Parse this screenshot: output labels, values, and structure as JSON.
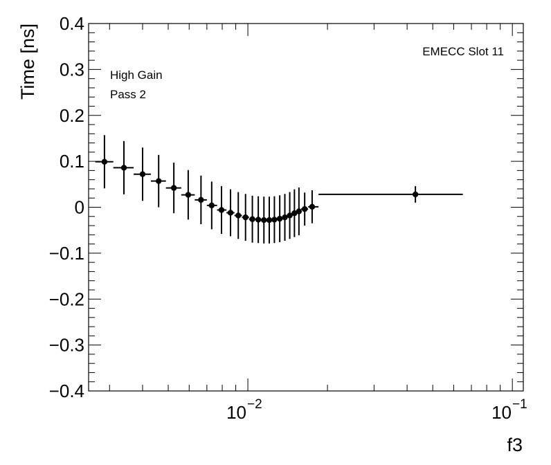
{
  "chart_data": {
    "type": "scatter",
    "xscale": "log",
    "xlim": [
      0.0025,
      0.11
    ],
    "ylim": [
      -0.4,
      0.4
    ],
    "xlabel": "f3",
    "ylabel": "Time [ns]",
    "x_major_ticks": [
      {
        "value": 0.01,
        "base": "10",
        "exp": "−2"
      },
      {
        "value": 0.1,
        "base": "10",
        "exp": "−1"
      }
    ],
    "y_ticks": [
      {
        "value": 0.4,
        "label": "0.4"
      },
      {
        "value": 0.3,
        "label": "0.3"
      },
      {
        "value": 0.2,
        "label": "0.2"
      },
      {
        "value": 0.1,
        "label": "0.1"
      },
      {
        "value": 0.0,
        "label": "0"
      },
      {
        "value": -0.1,
        "label": "−0.1"
      },
      {
        "value": -0.2,
        "label": "−0.2"
      },
      {
        "value": -0.3,
        "label": "−0.3"
      },
      {
        "value": -0.4,
        "label": "−0.4"
      }
    ],
    "annotations": {
      "top_right": "EMECC Slot 11",
      "top_left_line1": "High Gain",
      "top_left_line2": "Pass 2"
    },
    "series": [
      {
        "name": "EMECC Slot 11",
        "marker": "circle",
        "color": "#000000",
        "points": [
          {
            "x": 0.00287,
            "xlo": 0.00265,
            "xhi": 0.0031,
            "y": 0.099,
            "yerr": 0.058
          },
          {
            "x": 0.0034,
            "xlo": 0.0031,
            "xhi": 0.0037,
            "y": 0.086,
            "yerr": 0.058
          },
          {
            "x": 0.004,
            "xlo": 0.0037,
            "xhi": 0.0043,
            "y": 0.072,
            "yerr": 0.058
          },
          {
            "x": 0.0046,
            "xlo": 0.0043,
            "xhi": 0.0049,
            "y": 0.057,
            "yerr": 0.057
          },
          {
            "x": 0.00525,
            "xlo": 0.0049,
            "xhi": 0.0056,
            "y": 0.042,
            "yerr": 0.055
          },
          {
            "x": 0.00595,
            "xlo": 0.0056,
            "xhi": 0.0063,
            "y": 0.027,
            "yerr": 0.054
          },
          {
            "x": 0.00665,
            "xlo": 0.0063,
            "xhi": 0.007,
            "y": 0.016,
            "yerr": 0.053
          },
          {
            "x": 0.0073,
            "xlo": 0.007,
            "xhi": 0.00765,
            "y": 0.004,
            "yerr": 0.052
          },
          {
            "x": 0.00795,
            "xlo": 0.00765,
            "xhi": 0.0083,
            "y": -0.006,
            "yerr": 0.052
          },
          {
            "x": 0.0086,
            "xlo": 0.0083,
            "xhi": 0.0089,
            "y": -0.012,
            "yerr": 0.051
          },
          {
            "x": 0.0092,
            "xlo": 0.0089,
            "xhi": 0.0095,
            "y": -0.018,
            "yerr": 0.051
          },
          {
            "x": 0.0098,
            "xlo": 0.0095,
            "xhi": 0.0101,
            "y": -0.022,
            "yerr": 0.051
          },
          {
            "x": 0.0104,
            "xlo": 0.0101,
            "xhi": 0.0107,
            "y": -0.026,
            "yerr": 0.051
          },
          {
            "x": 0.01095,
            "xlo": 0.0107,
            "xhi": 0.0112,
            "y": -0.027,
            "yerr": 0.051
          },
          {
            "x": 0.0115,
            "xlo": 0.0112,
            "xhi": 0.0118,
            "y": -0.028,
            "yerr": 0.051
          },
          {
            "x": 0.01205,
            "xlo": 0.0118,
            "xhi": 0.0123,
            "y": -0.028,
            "yerr": 0.051
          },
          {
            "x": 0.0126,
            "xlo": 0.0123,
            "xhi": 0.0129,
            "y": -0.027,
            "yerr": 0.051
          },
          {
            "x": 0.0132,
            "xlo": 0.0129,
            "xhi": 0.0135,
            "y": -0.025,
            "yerr": 0.051
          },
          {
            "x": 0.0138,
            "xlo": 0.0135,
            "xhi": 0.0141,
            "y": -0.022,
            "yerr": 0.051
          },
          {
            "x": 0.0144,
            "xlo": 0.0141,
            "xhi": 0.0147,
            "y": -0.018,
            "yerr": 0.051
          },
          {
            "x": 0.015,
            "xlo": 0.0147,
            "xhi": 0.0153,
            "y": -0.013,
            "yerr": 0.052
          },
          {
            "x": 0.0156,
            "xlo": 0.0153,
            "xhi": 0.0159,
            "y": -0.009,
            "yerr": 0.052
          },
          {
            "x": 0.0164,
            "xlo": 0.0159,
            "xhi": 0.0169,
            "y": -0.004,
            "yerr": 0.036
          },
          {
            "x": 0.0175,
            "xlo": 0.0169,
            "xhi": 0.0185,
            "y": 0.001,
            "yerr": 0.036
          },
          {
            "x": 0.043,
            "xlo": 0.0185,
            "xhi": 0.065,
            "y": 0.028,
            "yerr": 0.018
          }
        ]
      }
    ]
  }
}
